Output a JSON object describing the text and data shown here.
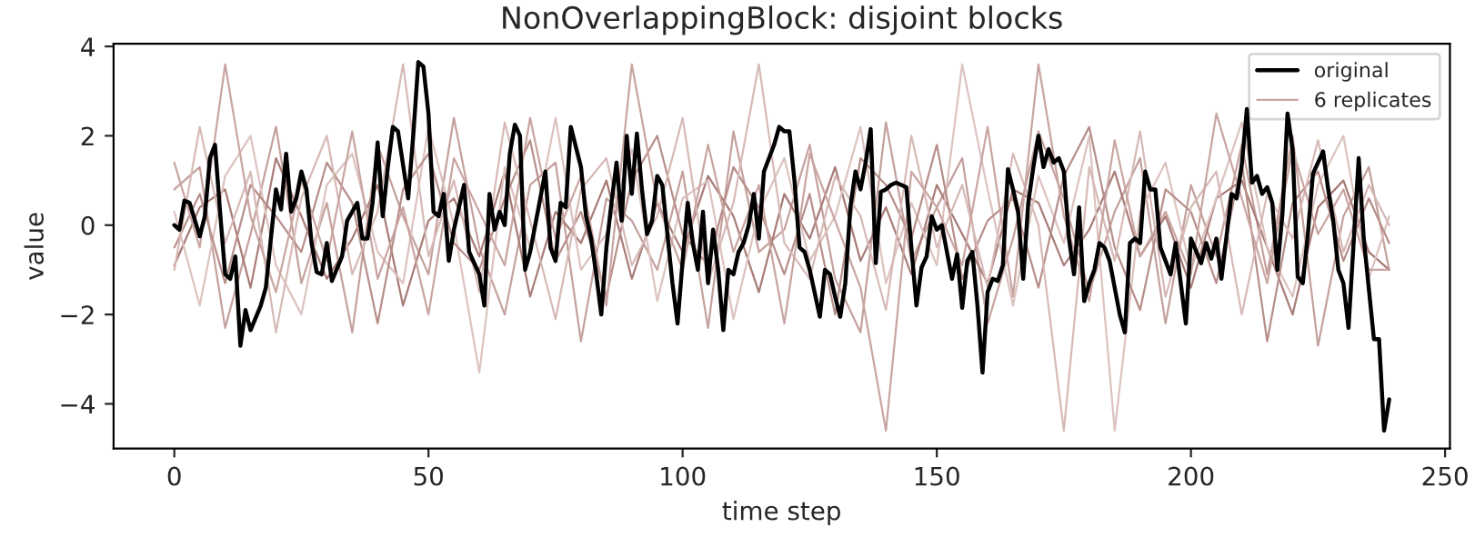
{
  "chart_data": {
    "type": "line",
    "title": "NonOverlappingBlock: disjoint blocks",
    "xlabel": "time step",
    "ylabel": "value",
    "xlim": [
      -11.95,
      250.95
    ],
    "ylim": [
      -5.0,
      4.06
    ],
    "xticks": [
      0,
      50,
      100,
      150,
      200,
      250
    ],
    "yticks": [
      -4,
      -2,
      0,
      2,
      4
    ],
    "grid": false,
    "legend": "top right",
    "marker": "none",
    "line_style": "solid",
    "series": [
      {
        "name": "original",
        "color": "#000000",
        "x": [
          0,
          1,
          2,
          3,
          5,
          6,
          7,
          8,
          9,
          10,
          11,
          12,
          13,
          14,
          15,
          17,
          18,
          19,
          20,
          21,
          22,
          23,
          24,
          25,
          26,
          27,
          28,
          29,
          30,
          31,
          33,
          34,
          36,
          37,
          38,
          39,
          40,
          41,
          42,
          43,
          44,
          46,
          47,
          48,
          49,
          50,
          51,
          52,
          53,
          54,
          55,
          57,
          58,
          60,
          61,
          62,
          63,
          64,
          65,
          66,
          67,
          68,
          69,
          70,
          72,
          73,
          74,
          75,
          76,
          77,
          78,
          80,
          81,
          82,
          83,
          84,
          85,
          86,
          87,
          88,
          89,
          90,
          91,
          92,
          93,
          94,
          95,
          96,
          97,
          98,
          99,
          100,
          101,
          102,
          103,
          104,
          105,
          106,
          107,
          108,
          109,
          110,
          111,
          112,
          113,
          114,
          115,
          116,
          117,
          118,
          119,
          120,
          121,
          122,
          123,
          124,
          125,
          127,
          128,
          129,
          130,
          131,
          132,
          133,
          134,
          135,
          136,
          137,
          138,
          139,
          140,
          141,
          142,
          143,
          144,
          145,
          146,
          147,
          148,
          149,
          150,
          151,
          152,
          153,
          154,
          155,
          156,
          157,
          158,
          159,
          160,
          161,
          162,
          163,
          164,
          165,
          166,
          167,
          168,
          169,
          170,
          171,
          172,
          173,
          174,
          175,
          176,
          177,
          178,
          179,
          180,
          181,
          182,
          183,
          184,
          186,
          187,
          188,
          189,
          190,
          191,
          192,
          193,
          194,
          195,
          196,
          197,
          199,
          200,
          202,
          203,
          204,
          205,
          206,
          208,
          209,
          210,
          211,
          212,
          213,
          214,
          215,
          216,
          217,
          218,
          219,
          220,
          221,
          222,
          223,
          224,
          226,
          227,
          228,
          229,
          230,
          231,
          233,
          234,
          236,
          237,
          238,
          239
        ],
        "values": [
          0.0,
          -0.1,
          0.55,
          0.5,
          -0.25,
          0.2,
          1.5,
          1.8,
          0.3,
          -1.1,
          -1.2,
          -0.7,
          -2.7,
          -1.9,
          -2.35,
          -1.8,
          -1.4,
          -0.3,
          0.8,
          0.35,
          1.6,
          0.3,
          0.6,
          1.2,
          0.8,
          -0.4,
          -1.05,
          -1.1,
          -0.4,
          -1.25,
          -0.7,
          0.1,
          0.5,
          -0.3,
          -0.3,
          0.5,
          1.85,
          0.2,
          1.3,
          2.2,
          2.1,
          0.6,
          2.0,
          3.65,
          3.55,
          2.5,
          0.3,
          0.2,
          0.7,
          -0.8,
          -0.1,
          0.9,
          -0.6,
          -1.1,
          -1.8,
          0.7,
          -0.1,
          0.3,
          0.0,
          1.6,
          2.25,
          2.0,
          -1.0,
          -0.6,
          0.6,
          1.2,
          -0.5,
          -0.8,
          0.5,
          0.4,
          2.2,
          1.3,
          0.2,
          -0.3,
          -1.1,
          -2.0,
          -0.5,
          0.5,
          1.4,
          0.1,
          2.0,
          0.7,
          2.05,
          0.8,
          -0.2,
          0.1,
          1.1,
          0.9,
          -0.2,
          -1.3,
          -2.2,
          -0.8,
          0.5,
          -0.4,
          -1.0,
          0.3,
          -1.3,
          -0.1,
          -1.0,
          -2.35,
          -1.0,
          -1.1,
          -0.6,
          -0.4,
          0.0,
          0.7,
          -0.3,
          1.2,
          1.5,
          1.8,
          2.2,
          2.1,
          2.1,
          1.0,
          -0.5,
          -0.6,
          -1.0,
          -2.05,
          -1.0,
          -1.1,
          -1.6,
          -2.05,
          -1.3,
          0.4,
          1.2,
          0.8,
          1.4,
          2.15,
          -0.85,
          0.75,
          0.8,
          0.9,
          0.95,
          0.9,
          0.85,
          -0.5,
          -1.8,
          -0.95,
          -0.7,
          0.2,
          -0.1,
          0.0,
          -0.6,
          -1.2,
          -0.65,
          -1.85,
          -0.8,
          -0.6,
          -1.8,
          -3.3,
          -1.5,
          -1.2,
          -1.25,
          -0.9,
          1.25,
          0.8,
          0.3,
          -1.2,
          0.5,
          1.3,
          2.0,
          1.3,
          1.7,
          1.4,
          1.5,
          1.2,
          -0.3,
          -1.1,
          0.4,
          -1.7,
          -1.3,
          -1.0,
          -0.4,
          -0.5,
          -0.8,
          -2.0,
          -2.4,
          -0.4,
          -0.3,
          -0.4,
          1.2,
          0.8,
          0.8,
          -0.5,
          -0.8,
          -1.1,
          -0.4,
          -2.2,
          -0.3,
          -0.85,
          -0.4,
          -0.75,
          -0.3,
          -1.2,
          0.7,
          0.6,
          1.35,
          2.6,
          0.95,
          1.1,
          0.7,
          0.85,
          0.5,
          -1.0,
          0.25,
          2.5,
          1.7,
          -1.15,
          -1.3,
          -0.2,
          1.15,
          1.65,
          0.8,
          0.1,
          -1.0,
          -1.3,
          -2.3,
          1.5,
          -0.3,
          -2.55,
          -2.55,
          -4.6,
          -3.9
        ]
      },
      {
        "name": "6 replicates",
        "color": "#c9a5a1",
        "x": [
          0,
          5,
          10,
          15,
          20,
          25,
          30,
          35,
          40,
          45,
          50,
          55,
          60,
          65,
          70,
          75,
          80,
          85,
          90,
          95,
          100,
          105,
          110,
          115,
          120,
          125,
          130,
          135,
          140,
          145,
          150,
          155,
          160,
          165,
          170,
          175,
          180,
          185,
          190,
          195,
          200,
          205,
          210,
          215,
          220,
          225,
          230,
          235,
          239
        ],
        "values": [
          1.4,
          -0.5,
          3.6,
          0.2,
          -1.5,
          1.0,
          -0.8,
          2.1,
          -1.2,
          0.4,
          -2.0,
          1.5,
          0.3,
          -0.9,
          2.4,
          -0.3,
          1.1,
          -1.8,
          3.6,
          0.5,
          -1.0,
          1.8,
          -0.6,
          0.9,
          -2.2,
          1.6,
          0.1,
          -1.4,
          -4.6,
          1.2,
          0.4,
          -0.9,
          2.2,
          -1.6,
          3.6,
          0.2,
          -1.7,
          1.9,
          -0.7,
          0.3,
          -1.1,
          2.5,
          0.6,
          -1.3,
          1.7,
          -0.2,
          0.8,
          -1.0,
          -1.0
        ]
      },
      {
        "color": "#d6bab7",
        "x": [
          0,
          5,
          10,
          15,
          20,
          25,
          30,
          35,
          40,
          45,
          50,
          55,
          60,
          65,
          70,
          75,
          80,
          85,
          90,
          95,
          100,
          105,
          110,
          115,
          120,
          125,
          130,
          135,
          140,
          145,
          150,
          155,
          160,
          165,
          170,
          175,
          180,
          185,
          190,
          195,
          200,
          205,
          210,
          215,
          220,
          225,
          230,
          235,
          239
        ],
        "values": [
          -1.0,
          2.2,
          -0.4,
          1.2,
          -2.4,
          0.6,
          2.0,
          -1.1,
          0.3,
          3.6,
          -0.7,
          1.0,
          -1.5,
          2.3,
          0.1,
          -2.1,
          0.8,
          1.5,
          -0.9,
          0.2,
          2.4,
          -1.3,
          0.5,
          3.6,
          -0.4,
          -1.2,
          1.1,
          0.2,
          -1.9,
          2.0,
          -0.5,
          0.9,
          -1.4,
          1.6,
          0.0,
          -4.6,
          1.3,
          -0.8,
          2.1,
          -1.6,
          0.4,
          1.2,
          -2.0,
          0.7,
          -0.3,
          1.9,
          -0.6,
          0.9,
          0.0
        ]
      },
      {
        "color": "#b78f8a",
        "x": [
          0,
          5,
          10,
          15,
          20,
          25,
          30,
          35,
          40,
          45,
          50,
          55,
          60,
          65,
          70,
          75,
          80,
          85,
          90,
          95,
          100,
          105,
          110,
          115,
          120,
          125,
          130,
          135,
          140,
          145,
          150,
          155,
          160,
          165,
          170,
          175,
          180,
          185,
          190,
          195,
          200,
          205,
          210,
          215,
          220,
          225,
          230,
          235,
          239
        ],
        "values": [
          -0.5,
          0.7,
          -1.3,
          0.9,
          0.2,
          -0.6,
          1.4,
          0.5,
          -2.2,
          0.8,
          1.6,
          -0.4,
          -1.0,
          0.6,
          1.9,
          -0.8,
          0.3,
          -1.6,
          1.0,
          2.0,
          -0.2,
          -0.9,
          1.3,
          0.4,
          -1.1,
          0.7,
          -2.0,
          1.5,
          0.9,
          -0.3,
          1.8,
          -1.2,
          0.1,
          0.6,
          -1.4,
          1.1,
          2.2,
          -0.5,
          -1.9,
          0.8,
          0.3,
          -1.3,
          1.4,
          -2.6,
          0.5,
          1.2,
          -0.8,
          0.6,
          -0.4
        ]
      },
      {
        "color": "#dcc3c0",
        "x": [
          0,
          5,
          10,
          15,
          20,
          25,
          30,
          35,
          40,
          45,
          50,
          55,
          60,
          65,
          70,
          75,
          80,
          85,
          90,
          95,
          100,
          105,
          110,
          115,
          120,
          125,
          130,
          135,
          140,
          145,
          150,
          155,
          160,
          165,
          170,
          175,
          180,
          185,
          190,
          195,
          200,
          205,
          210,
          215,
          220,
          225,
          230,
          235,
          239
        ],
        "values": [
          0.3,
          -1.8,
          1.1,
          2.0,
          -0.9,
          -2.0,
          0.9,
          1.6,
          -0.6,
          -1.3,
          2.2,
          0.0,
          -3.3,
          1.3,
          -0.5,
          2.4,
          -1.0,
          -0.2,
          1.7,
          -1.7,
          0.6,
          1.0,
          -2.1,
          0.3,
          1.5,
          -0.8,
          0.2,
          2.2,
          -1.3,
          0.5,
          -0.9,
          3.6,
          0.8,
          -1.8,
          1.1,
          -0.4,
          2.0,
          -4.6,
          0.3,
          1.4,
          -1.0,
          0.6,
          2.3,
          -0.5,
          -1.6,
          0.9,
          2.0,
          -1.2,
          0.2
        ]
      },
      {
        "color": "#a87c77",
        "x": [
          0,
          5,
          10,
          15,
          20,
          25,
          30,
          35,
          40,
          45,
          50,
          55,
          60,
          65,
          70,
          75,
          80,
          85,
          90,
          95,
          100,
          105,
          110,
          115,
          120,
          125,
          130,
          135,
          140,
          145,
          150,
          155,
          160,
          165,
          170,
          175,
          180,
          185,
          190,
          195,
          200,
          205,
          210,
          215,
          220,
          225,
          230,
          235,
          239
        ],
        "values": [
          -0.9,
          0.4,
          0.8,
          -1.4,
          1.5,
          0.2,
          -1.2,
          -0.3,
          0.9,
          -1.8,
          0.1,
          0.6,
          -0.7,
          1.2,
          -1.6,
          0.3,
          -0.4,
          1.0,
          -1.2,
          0.5,
          -0.6,
          1.1,
          0.2,
          -1.5,
          0.7,
          -0.3,
          1.3,
          -0.8,
          0.4,
          -1.1,
          0.9,
          -0.2,
          -1.3,
          0.8,
          0.5,
          -0.9,
          -0.1,
          1.2,
          -0.7,
          0.2,
          -1.4,
          0.6,
          1.0,
          -0.5,
          -2.0,
          0.4,
          1.0,
          -0.6,
          -1.0
        ]
      },
      {
        "color": "#c4a19d",
        "x": [
          0,
          5,
          10,
          15,
          20,
          25,
          30,
          35,
          40,
          45,
          50,
          55,
          60,
          65,
          70,
          75,
          80,
          85,
          90,
          95,
          100,
          105,
          110,
          115,
          120,
          125,
          130,
          135,
          140,
          145,
          150,
          155,
          160,
          165,
          170,
          175,
          180,
          185,
          190,
          195,
          200,
          205,
          210,
          215,
          220,
          225,
          230,
          235,
          239
        ],
        "values": [
          0.8,
          1.3,
          -2.3,
          -0.2,
          2.2,
          -1.3,
          0.5,
          -2.4,
          1.8,
          0.2,
          -1.1,
          2.4,
          -0.5,
          -2.0,
          0.9,
          1.4,
          -2.6,
          0.6,
          0.1,
          -1.0,
          1.2,
          -2.3,
          2.1,
          -0.6,
          -0.1,
          1.8,
          -1.2,
          -2.4,
          2.3,
          -0.8,
          0.4,
          1.5,
          -2.2,
          -0.3,
          2.1,
          0.6,
          -1.5,
          0.3,
          1.5,
          -2.2,
          0.9,
          -0.7,
          1.8,
          -1.1,
          2.0,
          -2.7,
          0.2,
          1.3,
          -1.0
        ]
      }
    ]
  }
}
